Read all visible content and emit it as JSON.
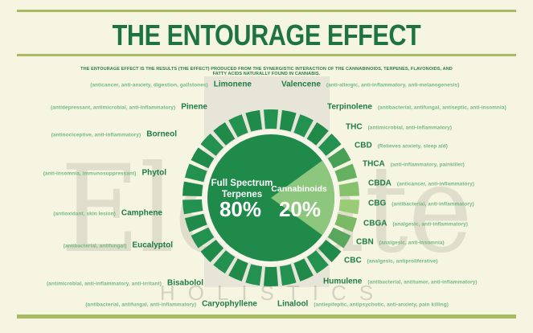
{
  "title": "THE ENTOURAGE EFFECT",
  "subtitle": "THE ENTOURAGE EFFECT IS THE RESULTS (THE EFFECT) PRODUCED FROM THE SYNERGISTIC INTERACTION OF THE CANNABINOIDS, TERPENES, FLAVONOIDS, AND FATTY ACIDS NATURALLY FOUND IN CANNABIS.",
  "watermark": {
    "line1": "Elevate",
    "line2": "HOLISTICS"
  },
  "colors": {
    "background": "#f6f5e2",
    "rule": "#a9ba62",
    "title_green": "#1e7440",
    "name_green": "#1e7c44",
    "property_green": "#71b87f",
    "dark_green": "#1f8a4a",
    "light_green": "#8dc77d"
  },
  "chart_data": {
    "type": "pie",
    "title": "THE ENTOURAGE EFFECT",
    "slices": [
      {
        "label": "Full Spectrum Terpenes",
        "label_lines": [
          "Full Spectrum",
          "Terpenes"
        ],
        "value": 80,
        "pct_label": "80%",
        "color": "#1f8a4a"
      },
      {
        "label": "Cannabinoids",
        "label_lines": [
          "Cannabinoids"
        ],
        "value": 20,
        "pct_label": "20%",
        "color": "#8dc77d"
      }
    ],
    "ring": {
      "segment_count": 30,
      "dark_color": "#1f8a4a",
      "dark_color_alt": "#23914f",
      "cannabinoid_segment_colors": [
        "#47a056",
        "#66b061",
        "#86c16d",
        "#9acb77",
        "#7cb966",
        "#58a75c"
      ]
    },
    "legend_position": "center"
  },
  "compounds": {
    "left": [
      {
        "name": "Limonene",
        "properties": "(anticancer, anti-anxiety, digestion, gallstones)"
      },
      {
        "name": "Pinene",
        "properties": "(antidepressant, antimicrobial, anti-inflammatory)"
      },
      {
        "name": "Borneol",
        "properties": "(antinociceptive, anti-inflammatory)"
      },
      {
        "name": "Phytol",
        "properties": "(anti-insomnia, immunosuppressant)"
      },
      {
        "name": "Camphene",
        "properties": "(antioxidant, skin lesion)"
      },
      {
        "name": "Eucalyptol",
        "properties": "(antibacterial, antifungal)"
      },
      {
        "name": "Bisabolol",
        "properties": "(antimicrobial, anti-inflammatory, anti-irritant)"
      },
      {
        "name": "Caryophyllene",
        "properties": "(antibacterial, antifungal, anti-inflammatory)"
      }
    ],
    "right": [
      {
        "name": "Valencene",
        "properties": "(anti-allergic, anti-inflammatory, anti-melanogenesis)"
      },
      {
        "name": "Terpinolene",
        "properties": "(antibacterial, antifungal, antiseptic, anti-insomnia)"
      },
      {
        "name": "THC",
        "properties": "(antimicrobial, anti-inflammatory)"
      },
      {
        "name": "CBD",
        "properties": "(Relieves anxiety, sleep aid)"
      },
      {
        "name": "THCA",
        "properties": "(anti-inflammatory, painkiller)"
      },
      {
        "name": "CBDA",
        "properties": "(anticancer, anti-inflammatory)"
      },
      {
        "name": "CBG",
        "properties": "(antibacterial, anti-inflammatory)"
      },
      {
        "name": "CBGA",
        "properties": "(analgesic, anti-inflammatory)"
      },
      {
        "name": "CBN",
        "properties": "(analgesic, anti-insomnia)"
      },
      {
        "name": "CBC",
        "properties": "(analgesic, antiproliferative)"
      },
      {
        "name": "Humulene",
        "properties": "(antibacterial, antitumor, anti-inflammatory)"
      },
      {
        "name": "Linalool",
        "properties": "(antiepileptic, antipsychotic, anti-anxiety, pain killing)"
      }
    ]
  }
}
